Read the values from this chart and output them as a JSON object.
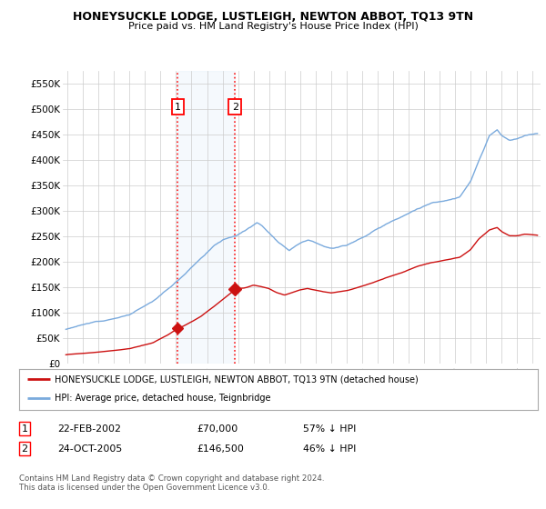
{
  "title": "HONEYSUCKLE LODGE, LUSTLEIGH, NEWTON ABBOT, TQ13 9TN",
  "subtitle": "Price paid vs. HM Land Registry's House Price Index (HPI)",
  "legend_line1": "HONEYSUCKLE LODGE, LUSTLEIGH, NEWTON ABBOT, TQ13 9TN (detached house)",
  "legend_line2": "HPI: Average price, detached house, Teignbridge",
  "footnote": "Contains HM Land Registry data © Crown copyright and database right 2024.\nThis data is licensed under the Open Government Licence v3.0.",
  "sale1_date": "22-FEB-2002",
  "sale1_price": "£70,000",
  "sale1_hpi": "57% ↓ HPI",
  "sale1_x": 2002.12,
  "sale1_y": 70000,
  "sale2_date": "24-OCT-2005",
  "sale2_price": "£146,500",
  "sale2_hpi": "46% ↓ HPI",
  "sale2_x": 2005.8,
  "sale2_y": 146500,
  "hpi_color": "#7aaadd",
  "price_color": "#cc1111",
  "bg_color": "#ffffff",
  "grid_color": "#cccccc",
  "shade_color": "#d8eaf8",
  "ylim": [
    0,
    575000
  ],
  "xlim_start": 1994.7,
  "xlim_end": 2025.5,
  "yticks": [
    0,
    50000,
    100000,
    150000,
    200000,
    250000,
    300000,
    350000,
    400000,
    450000,
    500000,
    550000
  ],
  "ytick_labels": [
    "£0",
    "£50K",
    "£100K",
    "£150K",
    "£200K",
    "£250K",
    "£300K",
    "£350K",
    "£400K",
    "£450K",
    "£500K",
    "£550K"
  ],
  "xticks": [
    1995,
    1996,
    1997,
    1998,
    1999,
    2000,
    2001,
    2002,
    2003,
    2004,
    2005,
    2006,
    2007,
    2008,
    2009,
    2010,
    2011,
    2012,
    2013,
    2014,
    2015,
    2016,
    2017,
    2018,
    2019,
    2020,
    2021,
    2022,
    2023,
    2024,
    2025
  ]
}
